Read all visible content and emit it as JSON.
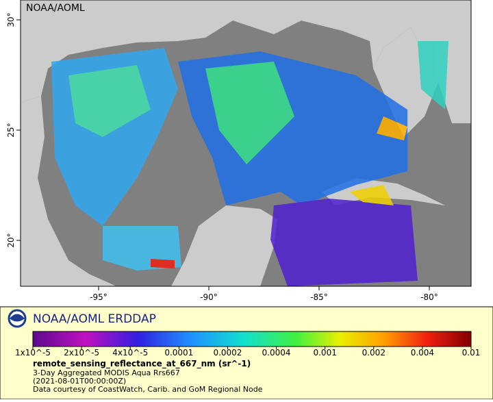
{
  "map": {
    "watermark": "NOAA/AOML",
    "lon_ticks": [
      {
        "value": -95,
        "label": "-95°"
      },
      {
        "value": -90,
        "label": "-90°"
      },
      {
        "value": -85,
        "label": "-85°"
      },
      {
        "value": -80,
        "label": "-80°"
      }
    ],
    "lat_ticks": [
      {
        "value": 20,
        "label": "20°"
      },
      {
        "value": 25,
        "label": "25°"
      },
      {
        "value": 30,
        "label": "30°"
      }
    ]
  },
  "legend": {
    "title": "NOAA/AOML ERDDAP",
    "colorbar_ticks": [
      {
        "value": 1e-05,
        "label": "1x10^-5"
      },
      {
        "value": 2e-05,
        "label": "2x10^-5"
      },
      {
        "value": 4e-05,
        "label": "4x10^-5"
      },
      0.0001,
      0.0002,
      0.0004,
      0.001,
      0.002,
      0.004,
      0.01
    ],
    "variable": "remote_sensing_reflectance_at_667_nm (sr^-1)",
    "description": "3-Day Aggregated MODIS Aqua Rrs667",
    "time": "(2021-08-01T00:00:00Z)",
    "credit": "Data courtesy of CoastWatch, Carib. and GoM Regional Node"
  }
}
